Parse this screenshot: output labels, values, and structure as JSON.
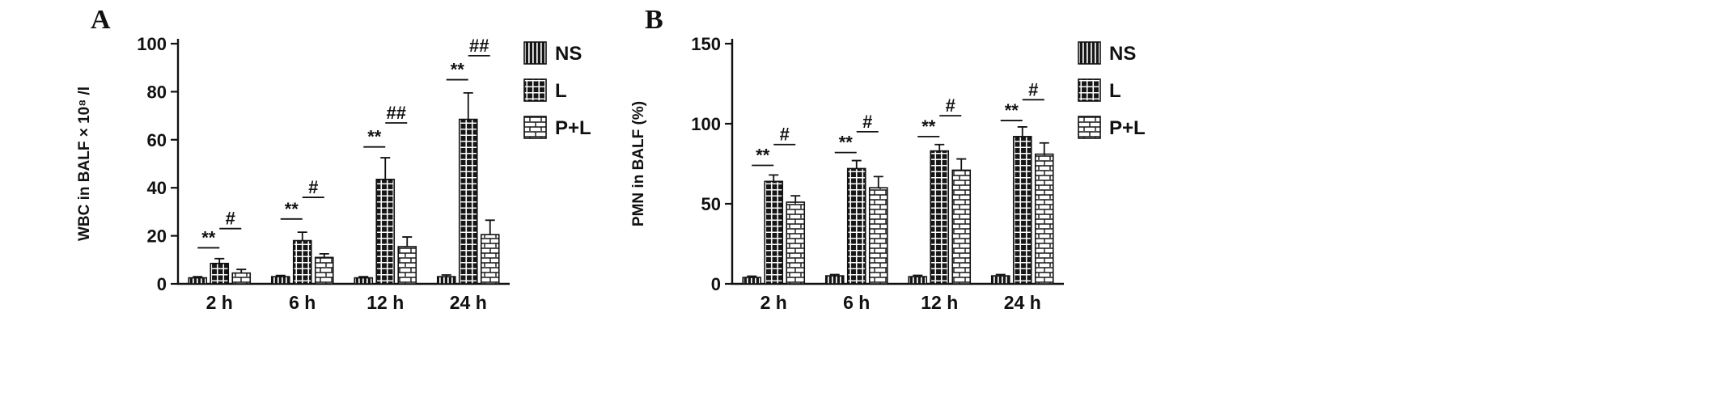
{
  "figure": {
    "background": "#ffffff",
    "axis_color": "#111111",
    "bar_fill_dark": "#161616",
    "bar_fill_light": "#ffffff"
  },
  "chart_data": [
    {
      "type": "bar",
      "panel_label": "A",
      "title": "",
      "xlabel": "",
      "ylabel": "WBC in BALF × 10⁸ /l",
      "categories": [
        "2 h",
        "6 h",
        "12 h",
        "24 h"
      ],
      "ylim": [
        0,
        100
      ],
      "yticks": [
        0,
        20,
        40,
        60,
        80,
        100
      ],
      "legend_position": "top-right",
      "series": [
        {
          "name": "NS",
          "pattern": "vertical-stripes",
          "values": [
            2.5,
            3,
            2.5,
            3
          ],
          "errors": [
            0.5,
            0.5,
            0.5,
            0.7
          ]
        },
        {
          "name": "L",
          "pattern": "grid",
          "values": [
            8.5,
            18,
            43.5,
            68.5
          ],
          "errors": [
            2,
            3.5,
            9,
            11
          ]
        },
        {
          "name": "P+L",
          "pattern": "brick",
          "values": [
            4.5,
            11,
            15.5,
            20.5
          ],
          "errors": [
            1.5,
            1.5,
            4,
            6
          ]
        }
      ],
      "annotations": [
        {
          "group": 0,
          "from": 0,
          "to": 1,
          "label": "**",
          "y": 15
        },
        {
          "group": 0,
          "from": 1,
          "to": 2,
          "label": "#",
          "y": 23
        },
        {
          "group": 1,
          "from": 0,
          "to": 1,
          "label": "**",
          "y": 27
        },
        {
          "group": 1,
          "from": 1,
          "to": 2,
          "label": "#",
          "y": 36
        },
        {
          "group": 2,
          "from": 0,
          "to": 1,
          "label": "**",
          "y": 57
        },
        {
          "group": 2,
          "from": 1,
          "to": 2,
          "label": "##",
          "y": 67
        },
        {
          "group": 3,
          "from": 0,
          "to": 1,
          "label": "**",
          "y": 85
        },
        {
          "group": 3,
          "from": 1,
          "to": 2,
          "label": "##",
          "y": 95
        }
      ]
    },
    {
      "type": "bar",
      "panel_label": "B",
      "title": "",
      "xlabel": "",
      "ylabel": "PMN in BALF (%)",
      "categories": [
        "2 h",
        "6 h",
        "12 h",
        "24 h"
      ],
      "ylim": [
        0,
        150
      ],
      "yticks": [
        0,
        50,
        100,
        150
      ],
      "legend_position": "top-right",
      "series": [
        {
          "name": "NS",
          "pattern": "vertical-stripes",
          "values": [
            4,
            5,
            4.5,
            5
          ],
          "errors": [
            0.8,
            0.8,
            0.8,
            0.8
          ]
        },
        {
          "name": "L",
          "pattern": "grid",
          "values": [
            64,
            72,
            83,
            92
          ],
          "errors": [
            4,
            5,
            4,
            6
          ]
        },
        {
          "name": "P+L",
          "pattern": "brick",
          "values": [
            51,
            60,
            71,
            81
          ],
          "errors": [
            4,
            7,
            7,
            7
          ]
        }
      ],
      "annotations": [
        {
          "group": 0,
          "from": 0,
          "to": 1,
          "label": "**",
          "y": 74
        },
        {
          "group": 0,
          "from": 1,
          "to": 2,
          "label": "#",
          "y": 87
        },
        {
          "group": 1,
          "from": 0,
          "to": 1,
          "label": "**",
          "y": 82
        },
        {
          "group": 1,
          "from": 1,
          "to": 2,
          "label": "#",
          "y": 95
        },
        {
          "group": 2,
          "from": 0,
          "to": 1,
          "label": "**",
          "y": 92
        },
        {
          "group": 2,
          "from": 1,
          "to": 2,
          "label": "#",
          "y": 105
        },
        {
          "group": 3,
          "from": 0,
          "to": 1,
          "label": "**",
          "y": 102
        },
        {
          "group": 3,
          "from": 1,
          "to": 2,
          "label": "#",
          "y": 115
        }
      ]
    }
  ]
}
